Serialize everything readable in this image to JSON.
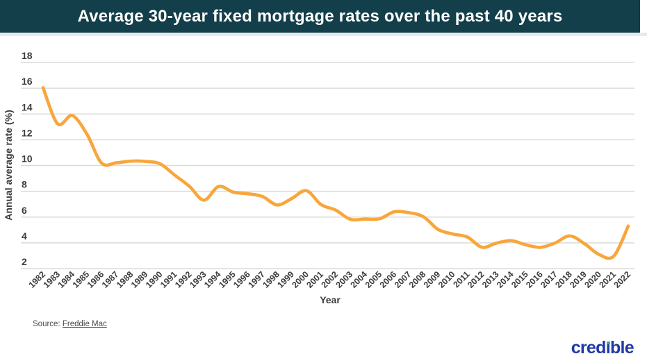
{
  "header": {
    "title": "Average 30-year fixed mortgage rates over the past 40 years",
    "bg_color": "#123F4A",
    "text_color": "#FFFFFF"
  },
  "chart_data": {
    "type": "line",
    "title": "Average 30-year fixed mortgage rates over the past 40 years",
    "xlabel": "Year",
    "ylabel": "Annual average rate (%)",
    "x": [
      "1982",
      "1983",
      "1984",
      "1985",
      "1986",
      "1987",
      "1988",
      "1989",
      "1990",
      "1991",
      "1992",
      "1993",
      "1994",
      "1995",
      "1996",
      "1997",
      "1998",
      "1999",
      "2000",
      "2001",
      "2002",
      "2003",
      "2004",
      "2005",
      "2006",
      "2007",
      "2008",
      "2009",
      "2010",
      "2011",
      "2012",
      "2013",
      "2014",
      "2015",
      "2016",
      "2017",
      "2018",
      "2019",
      "2020",
      "2021",
      "2022"
    ],
    "series": [
      {
        "name": "30-year fixed mortgage rate",
        "values": [
          16.04,
          13.24,
          13.88,
          12.43,
          10.19,
          10.21,
          10.34,
          10.32,
          10.13,
          9.25,
          8.39,
          7.31,
          8.38,
          7.93,
          7.81,
          7.6,
          6.94,
          7.44,
          8.05,
          6.97,
          6.54,
          5.83,
          5.84,
          5.87,
          6.41,
          6.34,
          6.03,
          5.04,
          4.69,
          4.45,
          3.66,
          3.98,
          4.17,
          3.85,
          3.65,
          3.99,
          4.54,
          3.94,
          3.1,
          2.96,
          5.3
        ]
      }
    ],
    "ylim": [
      2,
      18
    ],
    "yticks": [
      2,
      4,
      6,
      8,
      10,
      12,
      14,
      16,
      18
    ],
    "grid": true,
    "legend": "none",
    "line_color": "#F8A63B",
    "grid_color": "#DBDBDB",
    "tick_color": "#3D3D3D"
  },
  "source": {
    "prefix": "Source:",
    "link_text": "Freddie Mac"
  },
  "logo": {
    "pre": "cred",
    "i_stem": "ı",
    "post": "ble",
    "blue": "#1F39A8",
    "green": "#31B08B"
  }
}
